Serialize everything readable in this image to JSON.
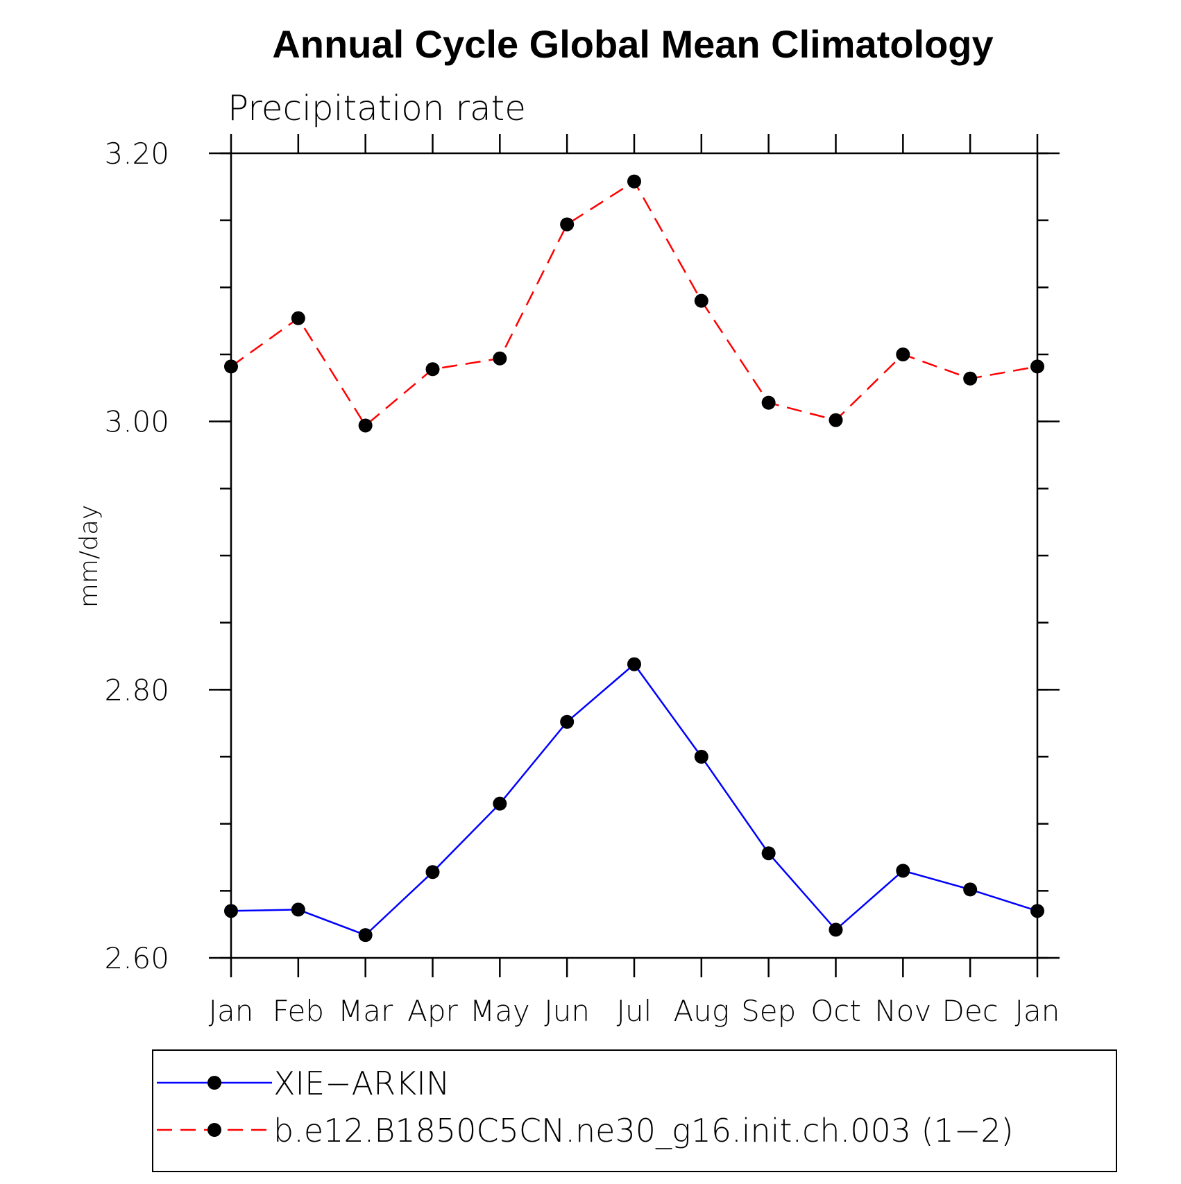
{
  "chart_data": {
    "type": "line",
    "title": "Annual Cycle Global Mean Climatology",
    "subtitle": "Precipitation rate",
    "xlabel": "",
    "ylabel": "mm/day",
    "categories": [
      "Jan",
      "Feb",
      "Mar",
      "Apr",
      "May",
      "Jun",
      "Jul",
      "Aug",
      "Sep",
      "Oct",
      "Nov",
      "Dec",
      "Jan"
    ],
    "ylim": [
      2.6,
      3.2
    ],
    "yticks": [
      2.6,
      2.8,
      3.0,
      3.2
    ],
    "ytick_labels": [
      "2.60",
      "2.80",
      "3.00",
      "3.20"
    ],
    "minor_tick_step": 0.05,
    "grid": false,
    "legend_position": "bottom",
    "series": [
      {
        "name": "XIE−ARKIN",
        "color": "#0000ff",
        "line_style": "solid",
        "marker": "filled-circle",
        "values": [
          2.635,
          2.636,
          2.617,
          2.664,
          2.715,
          2.776,
          2.819,
          2.75,
          2.678,
          2.621,
          2.665,
          2.651,
          2.635
        ]
      },
      {
        "name": "b.e12.B1850C5CN.ne30_g16.init.ch.003 (1−2)",
        "color": "#ff0000",
        "line_style": "dashed",
        "marker": "filled-circle",
        "values": [
          3.041,
          3.077,
          2.997,
          3.039,
          3.047,
          3.147,
          3.179,
          3.09,
          3.014,
          3.001,
          3.05,
          3.032,
          3.041
        ]
      }
    ]
  }
}
